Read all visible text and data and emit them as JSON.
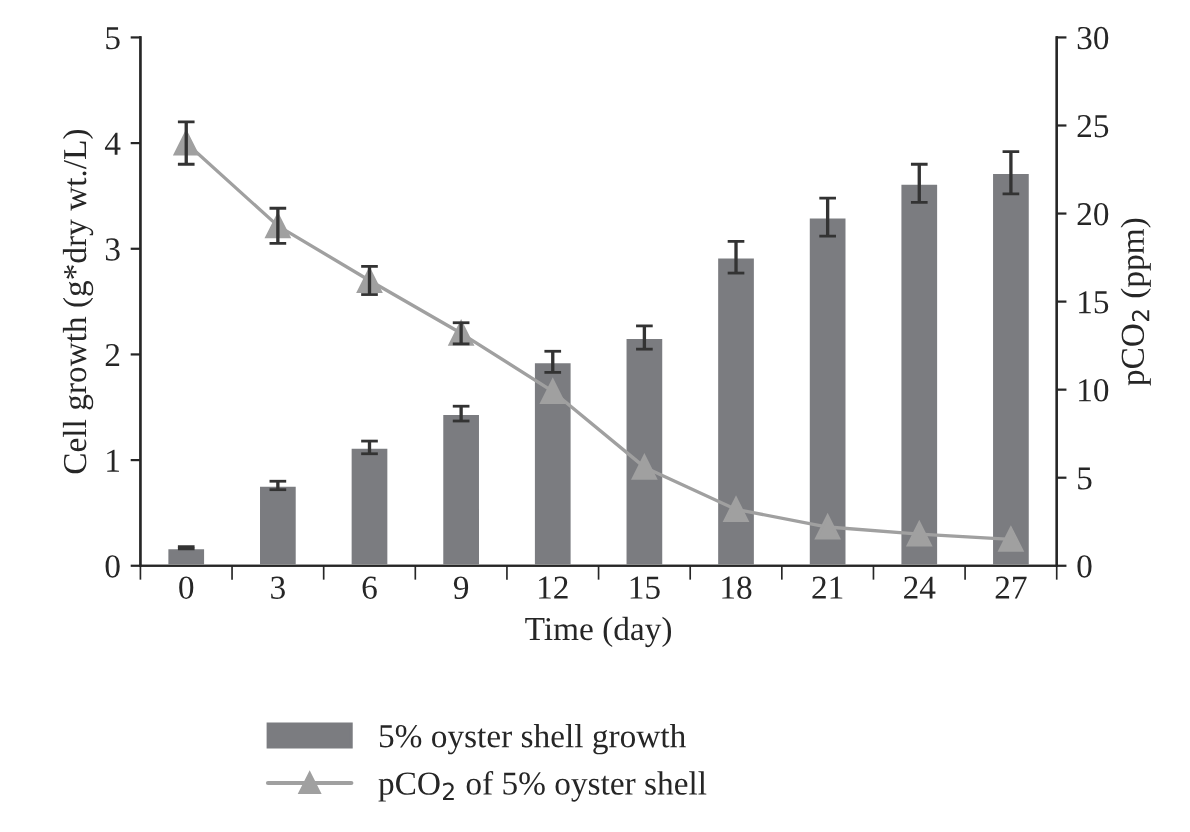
{
  "chart_data": {
    "type": "bar",
    "xlabel": "Time (day)",
    "ylabel": "Cell growth (g*dry wt./L)",
    "y2label": "pCO$_{2}$ (ppm)",
    "categories": [
      "0",
      "3",
      "6",
      "9",
      "12",
      "15",
      "18",
      "21",
      "24",
      "27"
    ],
    "series": [
      {
        "name": "5% oyster shell growth",
        "color": "#7b7c80",
        "values": [
          0.17,
          0.76,
          1.12,
          1.44,
          1.93,
          2.16,
          2.92,
          3.3,
          3.62,
          3.72
        ],
        "errors": [
          0.01,
          0.04,
          0.06,
          0.07,
          0.1,
          0.11,
          0.15,
          0.18,
          0.18,
          0.2
        ]
      },
      {
        "name": "pCO$_{2}$ of 5% oyster shell",
        "type": "line",
        "axis": "y2",
        "color": "#a0a0a0",
        "marker": "triangle",
        "values": [
          24,
          19.3,
          16.2,
          13.2,
          9.9,
          5.6,
          3.2,
          2.2,
          1.8,
          1.5
        ],
        "errors": [
          1.2,
          1.0,
          0.8,
          0.6,
          null,
          null,
          null,
          null,
          null,
          null
        ]
      }
    ],
    "ylim": [
      0,
      5
    ],
    "yticks": [
      0,
      1,
      2,
      3,
      4,
      5
    ],
    "y2lim": [
      0,
      30
    ],
    "y2ticks": [
      0,
      5,
      10,
      15,
      20,
      25,
      30
    ],
    "grid": false,
    "legend": "bottom left"
  }
}
